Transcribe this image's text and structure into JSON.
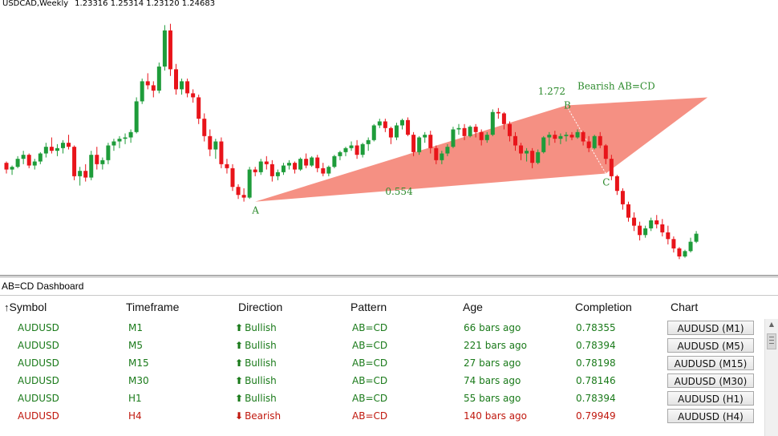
{
  "chart": {
    "symbol_tf": "USDCAD,Weekly",
    "prices": "1.23316 1.25314 1.23120 1.24683",
    "pattern_label": "Bearish AB=CD",
    "ratio_ab": "0.554",
    "ratio_cd": "1.272",
    "point_a": "A",
    "point_b": "B",
    "point_c": "C",
    "colors": {
      "bull": "#1e9c3a",
      "bear": "#e8141a",
      "pattern_fill": "#f48a7c",
      "label": "#2e8b2e"
    }
  },
  "dashboard": {
    "title": "AB=CD Dashboard",
    "headers": {
      "symbol": "Symbol",
      "timeframe": "Timeframe",
      "direction": "Direction",
      "pattern": "Pattern",
      "age": "Age",
      "completion": "Completion",
      "chart": "Chart"
    },
    "sort_icon": "up-arrow-icon",
    "rows": [
      {
        "symbol": "AUDUSD",
        "timeframe": "M1",
        "direction": "Bullish",
        "pattern": "AB=CD",
        "age": "66 bars ago",
        "completion": "0.78355",
        "chart": "AUDUSD (M1)",
        "kind": "bull"
      },
      {
        "symbol": "AUDUSD",
        "timeframe": "M5",
        "direction": "Bullish",
        "pattern": "AB=CD",
        "age": "221 bars ago",
        "completion": "0.78394",
        "chart": "AUDUSD (M5)",
        "kind": "bull"
      },
      {
        "symbol": "AUDUSD",
        "timeframe": "M15",
        "direction": "Bullish",
        "pattern": "AB=CD",
        "age": "27 bars ago",
        "completion": "0.78198",
        "chart": "AUDUSD (M15)",
        "kind": "bull"
      },
      {
        "symbol": "AUDUSD",
        "timeframe": "M30",
        "direction": "Bullish",
        "pattern": "AB=CD",
        "age": "74 bars ago",
        "completion": "0.78146",
        "chart": "AUDUSD (M30)",
        "kind": "bull"
      },
      {
        "symbol": "AUDUSD",
        "timeframe": "H1",
        "direction": "Bullish",
        "pattern": "AB=CD",
        "age": "55 bars ago",
        "completion": "0.78394",
        "chart": "AUDUSD (H1)",
        "kind": "bull"
      },
      {
        "symbol": "AUDUSD",
        "timeframe": "H4",
        "direction": "Bearish",
        "pattern": "AB=CD",
        "age": "140 bars ago",
        "completion": "0.79949",
        "chart": "AUDUSD (H4)",
        "kind": "bear"
      }
    ]
  },
  "chart_data": {
    "type": "candlestick",
    "candles": [
      [
        1.209,
        1.21,
        1.201,
        1.204
      ],
      [
        1.204,
        1.207,
        1.2,
        1.206
      ],
      [
        1.206,
        1.214,
        1.205,
        1.212
      ],
      [
        1.212,
        1.218,
        1.208,
        1.215
      ],
      [
        1.215,
        1.216,
        1.205,
        1.207
      ],
      [
        1.207,
        1.212,
        1.204,
        1.21
      ],
      [
        1.21,
        1.217,
        1.208,
        1.216
      ],
      [
        1.216,
        1.224,
        1.213,
        1.221
      ],
      [
        1.221,
        1.228,
        1.216,
        1.218
      ],
      [
        1.218,
        1.223,
        1.214,
        1.22
      ],
      [
        1.22,
        1.226,
        1.216,
        1.224
      ],
      [
        1.224,
        1.23,
        1.219,
        1.221
      ],
      [
        1.221,
        1.222,
        1.196,
        1.199
      ],
      [
        1.199,
        1.206,
        1.192,
        1.203
      ],
      [
        1.203,
        1.208,
        1.195,
        1.198
      ],
      [
        1.198,
        1.218,
        1.196,
        1.215
      ],
      [
        1.215,
        1.221,
        1.204,
        1.208
      ],
      [
        1.208,
        1.213,
        1.204,
        1.211
      ],
      [
        1.211,
        1.224,
        1.208,
        1.222
      ],
      [
        1.222,
        1.227,
        1.218,
        1.225
      ],
      [
        1.225,
        1.229,
        1.22,
        1.227
      ],
      [
        1.227,
        1.231,
        1.223,
        1.228
      ],
      [
        1.228,
        1.234,
        1.224,
        1.232
      ],
      [
        1.232,
        1.258,
        1.231,
        1.255
      ],
      [
        1.255,
        1.272,
        1.253,
        1.27
      ],
      [
        1.27,
        1.276,
        1.264,
        1.267
      ],
      [
        1.267,
        1.27,
        1.258,
        1.263
      ],
      [
        1.263,
        1.284,
        1.261,
        1.281
      ],
      [
        1.281,
        1.312,
        1.278,
        1.308
      ],
      [
        1.308,
        1.313,
        1.274,
        1.279
      ],
      [
        1.279,
        1.283,
        1.26,
        1.264
      ],
      [
        1.264,
        1.272,
        1.26,
        1.27
      ],
      [
        1.27,
        1.272,
        1.258,
        1.261
      ],
      [
        1.261,
        1.264,
        1.254,
        1.258
      ],
      [
        1.258,
        1.26,
        1.238,
        1.242
      ],
      [
        1.242,
        1.246,
        1.225,
        1.229
      ],
      [
        1.229,
        1.234,
        1.214,
        1.219
      ],
      [
        1.219,
        1.227,
        1.212,
        1.225
      ],
      [
        1.225,
        1.228,
        1.205,
        1.208
      ],
      [
        1.208,
        1.212,
        1.201,
        1.205
      ],
      [
        1.205,
        1.208,
        1.188,
        1.191
      ],
      [
        1.191,
        1.193,
        1.182,
        1.185
      ],
      [
        1.185,
        1.19,
        1.18,
        1.183
      ],
      [
        1.183,
        1.206,
        1.182,
        1.204
      ],
      [
        1.204,
        1.206,
        1.199,
        1.202
      ],
      [
        1.202,
        1.212,
        1.2,
        1.21
      ],
      [
        1.21,
        1.214,
        1.204,
        1.208
      ],
      [
        1.208,
        1.211,
        1.195,
        1.199
      ],
      [
        1.199,
        1.204,
        1.196,
        1.202
      ],
      [
        1.202,
        1.209,
        1.2,
        1.207
      ],
      [
        1.207,
        1.211,
        1.204,
        1.209
      ],
      [
        1.209,
        1.21,
        1.201,
        1.204
      ],
      [
        1.204,
        1.213,
        1.203,
        1.212
      ],
      [
        1.212,
        1.216,
        1.205,
        1.207
      ],
      [
        1.207,
        1.214,
        1.206,
        1.213
      ],
      [
        1.213,
        1.215,
        1.202,
        1.205
      ],
      [
        1.205,
        1.209,
        1.199,
        1.201
      ],
      [
        1.201,
        1.207,
        1.199,
        1.206
      ],
      [
        1.206,
        1.215,
        1.205,
        1.214
      ],
      [
        1.214,
        1.218,
        1.211,
        1.217
      ],
      [
        1.217,
        1.221,
        1.214,
        1.22
      ],
      [
        1.22,
        1.225,
        1.218,
        1.222
      ],
      [
        1.222,
        1.226,
        1.212,
        1.215
      ],
      [
        1.215,
        1.224,
        1.213,
        1.223
      ],
      [
        1.223,
        1.228,
        1.218,
        1.226
      ],
      [
        1.226,
        1.238,
        1.225,
        1.237
      ],
      [
        1.237,
        1.242,
        1.235,
        1.24
      ],
      [
        1.24,
        1.242,
        1.232,
        1.235
      ],
      [
        1.235,
        1.236,
        1.223,
        1.228
      ],
      [
        1.228,
        1.239,
        1.226,
        1.237
      ],
      [
        1.237,
        1.242,
        1.234,
        1.241
      ],
      [
        1.241,
        1.243,
        1.229,
        1.23
      ],
      [
        1.23,
        1.232,
        1.214,
        1.217
      ],
      [
        1.217,
        1.229,
        1.215,
        1.228
      ],
      [
        1.228,
        1.232,
        1.224,
        1.23
      ],
      [
        1.23,
        1.233,
        1.216,
        1.22
      ],
      [
        1.22,
        1.222,
        1.208,
        1.211
      ],
      [
        1.211,
        1.218,
        1.208,
        1.216
      ],
      [
        1.216,
        1.223,
        1.214,
        1.221
      ],
      [
        1.221,
        1.236,
        1.22,
        1.234
      ],
      [
        1.234,
        1.238,
        1.23,
        1.235
      ],
      [
        1.235,
        1.238,
        1.226,
        1.229
      ],
      [
        1.229,
        1.237,
        1.228,
        1.236
      ],
      [
        1.236,
        1.238,
        1.228,
        1.232
      ],
      [
        1.232,
        1.234,
        1.222,
        1.226
      ],
      [
        1.226,
        1.232,
        1.224,
        1.23
      ],
      [
        1.23,
        1.249,
        1.229,
        1.247
      ],
      [
        1.247,
        1.25,
        1.242,
        1.246
      ],
      [
        1.246,
        1.247,
        1.234,
        1.238
      ],
      [
        1.238,
        1.24,
        1.225,
        1.229
      ],
      [
        1.229,
        1.232,
        1.218,
        1.222
      ],
      [
        1.222,
        1.224,
        1.211,
        1.216
      ],
      [
        1.216,
        1.22,
        1.21,
        1.218
      ],
      [
        1.218,
        1.22,
        1.205,
        1.209
      ],
      [
        1.209,
        1.219,
        1.208,
        1.217
      ],
      [
        1.217,
        1.229,
        1.216,
        1.228
      ],
      [
        1.228,
        1.232,
        1.222,
        1.23
      ],
      [
        1.23,
        1.233,
        1.224,
        1.227
      ],
      [
        1.227,
        1.231,
        1.223,
        1.229
      ],
      [
        1.229,
        1.232,
        1.225,
        1.23
      ],
      [
        1.23,
        1.232,
        1.226,
        1.228
      ],
      [
        1.228,
        1.234,
        1.227,
        1.232
      ],
      [
        1.232,
        1.233,
        1.222,
        1.225
      ],
      [
        1.225,
        1.229,
        1.217,
        1.22
      ],
      [
        1.22,
        1.23,
        1.219,
        1.229
      ],
      [
        1.229,
        1.232,
        1.22,
        1.222
      ],
      [
        1.222,
        1.223,
        1.208,
        1.212
      ],
      [
        1.212,
        1.215,
        1.196,
        1.199
      ],
      [
        1.199,
        1.2,
        1.185,
        1.188
      ],
      [
        1.188,
        1.19,
        1.174,
        1.178
      ],
      [
        1.178,
        1.18,
        1.165,
        1.168
      ],
      [
        1.168,
        1.172,
        1.158,
        1.162
      ],
      [
        1.162,
        1.165,
        1.151,
        1.155
      ],
      [
        1.155,
        1.162,
        1.153,
        1.16
      ],
      [
        1.16,
        1.168,
        1.158,
        1.166
      ],
      [
        1.166,
        1.17,
        1.16,
        1.163
      ],
      [
        1.163,
        1.167,
        1.154,
        1.157
      ],
      [
        1.157,
        1.162,
        1.148,
        1.152
      ],
      [
        1.152,
        1.154,
        1.142,
        1.145
      ],
      [
        1.145,
        1.146,
        1.137,
        1.139
      ],
      [
        1.139,
        1.144,
        1.138,
        1.143
      ],
      [
        1.143,
        1.153,
        1.142,
        1.15
      ],
      [
        1.15,
        1.158,
        1.149,
        1.156
      ]
    ],
    "pattern": {
      "A": [
        44,
        1.18
      ],
      "B": [
        99,
        1.252
      ],
      "C": [
        106,
        1.201
      ],
      "D": [
        124,
        1.258
      ]
    },
    "y_range": [
      1.13,
      1.32
    ]
  }
}
